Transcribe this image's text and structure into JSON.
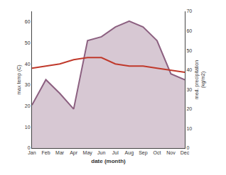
{
  "chart_data": {
    "type": "line",
    "categories": [
      "Jan",
      "Feb",
      "Mar",
      "Apr",
      "May",
      "Jun",
      "Jul",
      "Aug",
      "Sep",
      "Oct",
      "Nov",
      "Dec"
    ],
    "xlabel": "date (month)",
    "ylabel": "max temp (C)",
    "y2label": "med. precipitation\n(kg/m2)",
    "series": [
      {
        "type": "area",
        "axis": "y2",
        "color": "#8c6080",
        "values": [
          22,
          35,
          28,
          20,
          55,
          57,
          62,
          65,
          62,
          55,
          38,
          35
        ]
      },
      {
        "type": "line",
        "color": "#c0392b",
        "values": [
          38,
          39,
          40,
          42,
          43,
          43,
          40,
          39,
          39,
          38,
          37,
          36
        ]
      }
    ],
    "ylim": [
      0,
      65
    ],
    "yticks": [
      0,
      10,
      20,
      30,
      40,
      50,
      60
    ],
    "y2lim": [
      0,
      70
    ],
    "y2ticks": [
      0,
      10,
      20,
      30,
      40,
      50,
      60,
      70
    ],
    "grid": false
  }
}
